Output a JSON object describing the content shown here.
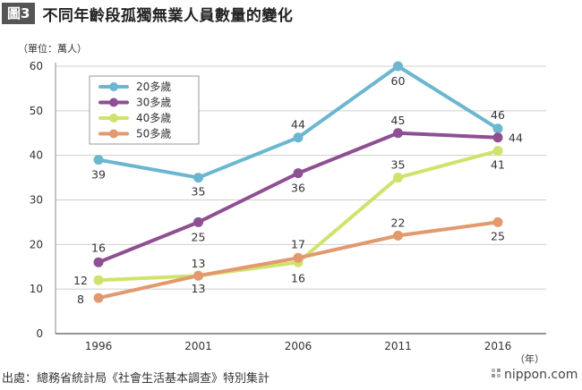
{
  "header": {
    "figure_label": "圖3",
    "title": "不同年齡段孤獨無業人員數量的變化"
  },
  "chart_data": {
    "type": "line",
    "ylabel": "（單位：萬人）",
    "xlabel": "（年）",
    "x": [
      "1996",
      "2001",
      "2006",
      "2011",
      "2016"
    ],
    "ylim": [
      0,
      60
    ],
    "yticks": [
      0,
      10,
      20,
      30,
      40,
      50,
      60
    ],
    "grid": true,
    "legend_position": "top-left",
    "series": [
      {
        "name": "20多歲",
        "color": "#6cb6d0",
        "values": [
          39,
          35,
          44,
          60,
          46
        ]
      },
      {
        "name": "30多歲",
        "color": "#8e4f93",
        "values": [
          16,
          25,
          36,
          45,
          44
        ]
      },
      {
        "name": "40多歲",
        "color": "#cfe36c",
        "values": [
          12,
          13,
          16,
          35,
          41
        ]
      },
      {
        "name": "50多歲",
        "color": "#e2996e",
        "values": [
          8,
          13,
          17,
          22,
          25
        ]
      }
    ]
  },
  "footer": {
    "source": "出處：總務省統計局《社會生活基本調查》特別集計",
    "brand": "nippon.com"
  }
}
